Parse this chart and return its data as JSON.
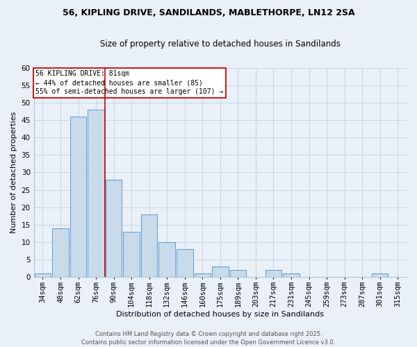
{
  "title_line1": "56, KIPLING DRIVE, SANDILANDS, MABLETHORPE, LN12 2SA",
  "title_line2": "Size of property relative to detached houses in Sandilands",
  "xlabel": "Distribution of detached houses by size in Sandilands",
  "ylabel": "Number of detached properties",
  "bin_labels": [
    "34sqm",
    "48sqm",
    "62sqm",
    "76sqm",
    "90sqm",
    "104sqm",
    "118sqm",
    "132sqm",
    "146sqm",
    "160sqm",
    "175sqm",
    "189sqm",
    "203sqm",
    "217sqm",
    "231sqm",
    "245sqm",
    "259sqm",
    "273sqm",
    "287sqm",
    "301sqm",
    "315sqm"
  ],
  "values": [
    1,
    14,
    46,
    48,
    28,
    13,
    18,
    10,
    8,
    1,
    3,
    2,
    0,
    2,
    1,
    0,
    0,
    0,
    0,
    1,
    0
  ],
  "bar_color": "#c9daea",
  "bar_edge_color": "#5b9bd5",
  "vline_index": 3.5,
  "vline_color": "#cc0000",
  "annotation_text": "56 KIPLING DRIVE: 81sqm\n← 44% of detached houses are smaller (85)\n55% of semi-detached houses are larger (107) →",
  "annotation_box_color": "#ffffff",
  "annotation_box_edge": "#cc0000",
  "footer_line1": "Contains HM Land Registry data © Crown copyright and database right 2025.",
  "footer_line2": "Contains public sector information licensed under the Open Government Licence v3.0.",
  "background_color": "#eaf0f8",
  "ylim": [
    0,
    60
  ],
  "yticks": [
    0,
    5,
    10,
    15,
    20,
    25,
    30,
    35,
    40,
    45,
    50,
    55,
    60
  ],
  "title_fontsize": 9,
  "subtitle_fontsize": 8.5,
  "ylabel_fontsize": 8,
  "xlabel_fontsize": 8,
  "tick_fontsize": 7.5,
  "footer_fontsize": 6
}
